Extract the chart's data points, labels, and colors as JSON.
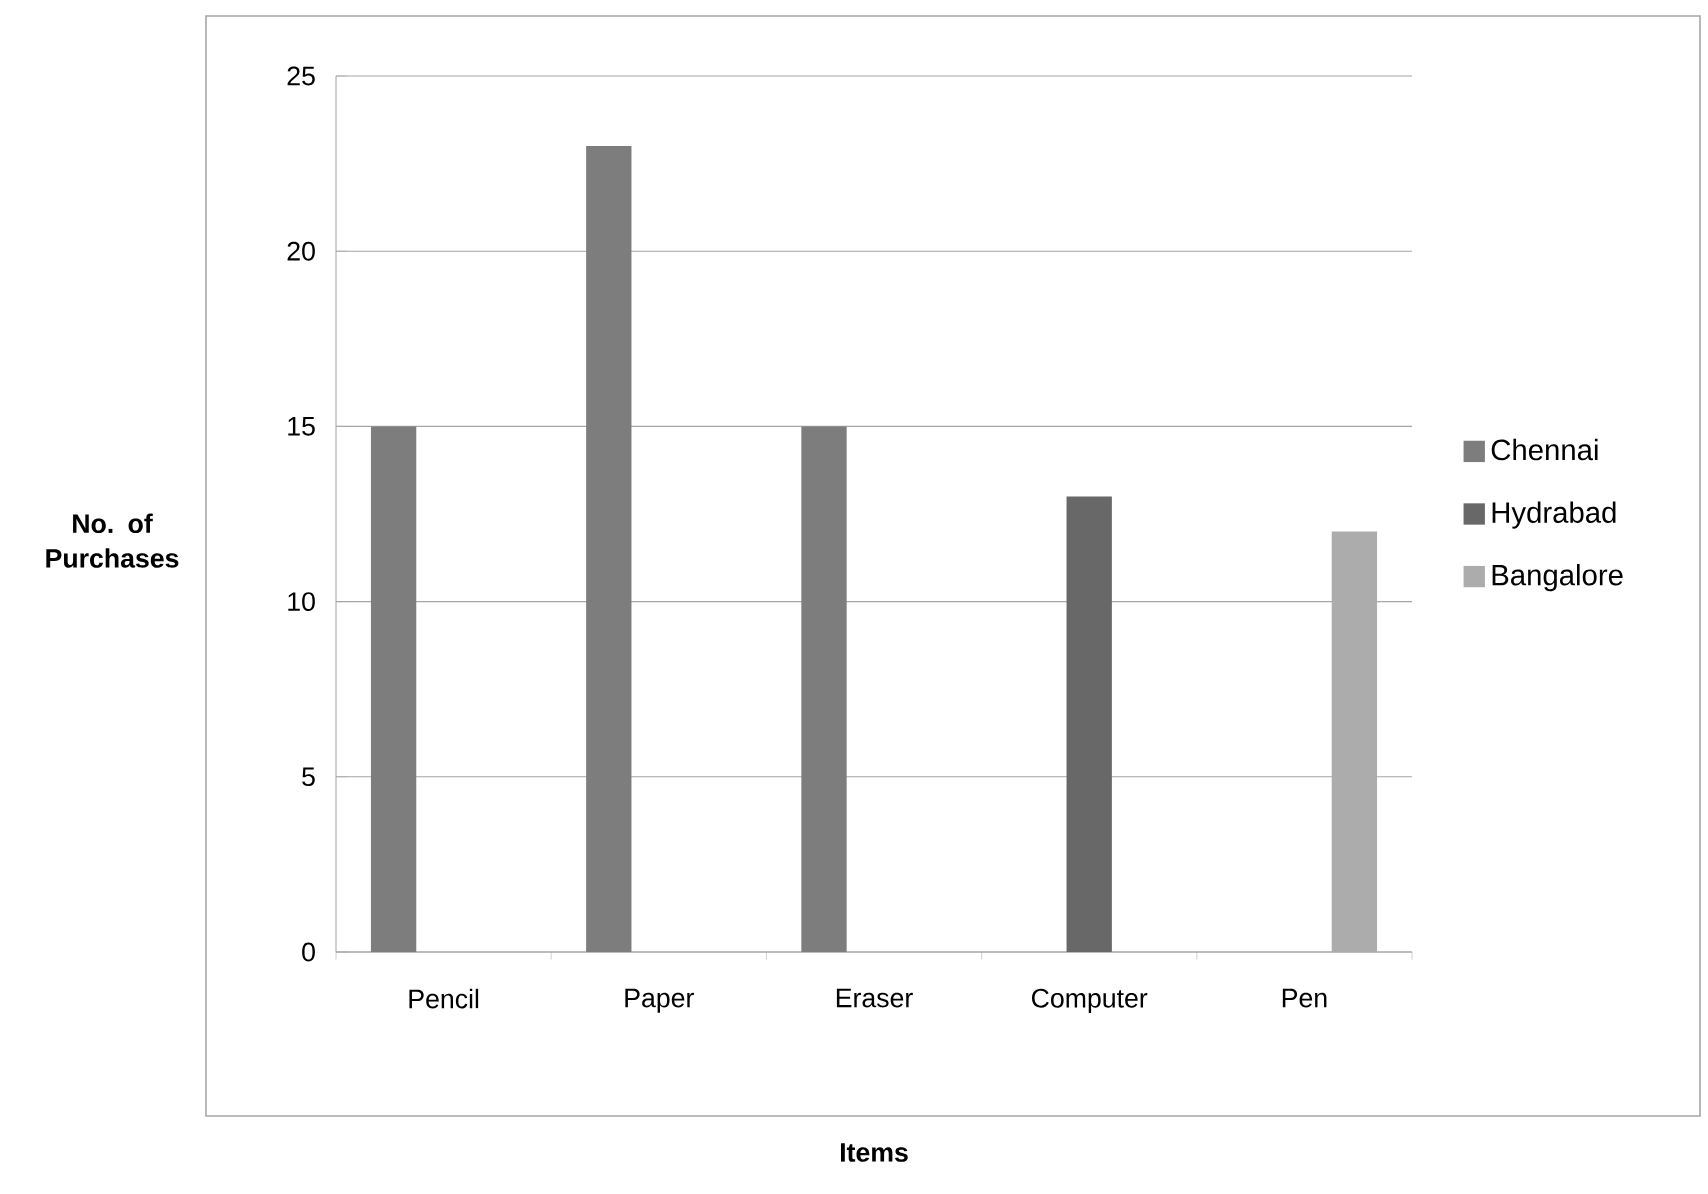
{
  "chart_data": {
    "type": "bar",
    "xlabel": "Items",
    "ylabel": "No. of Purchases",
    "categories": [
      "Pencil",
      "Paper",
      "Eraser",
      "Computer",
      "Pen"
    ],
    "series": [
      {
        "name": "Chennai",
        "color": "#7d7d7d",
        "values": [
          15,
          23,
          15,
          null,
          null
        ]
      },
      {
        "name": "Hydrabad",
        "color": "#686868",
        "values": [
          null,
          null,
          null,
          13,
          null
        ]
      },
      {
        "name": "Bangalore",
        "color": "#acacac",
        "values": [
          null,
          null,
          null,
          null,
          12
        ]
      }
    ],
    "ylim": [
      0,
      25
    ],
    "yticks": [
      0,
      5,
      10,
      15,
      20,
      25
    ],
    "grid": "y",
    "legend": "right"
  }
}
